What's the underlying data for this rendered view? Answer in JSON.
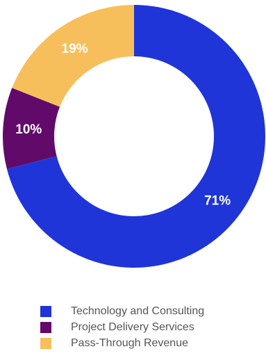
{
  "chart_data": {
    "type": "pie",
    "style": "donut",
    "slices": [
      {
        "name": "Technology and Consulting",
        "value": 71,
        "label": "71%",
        "color": "#1f35d8"
      },
      {
        "name": "Project Delivery Services",
        "value": 10,
        "label": "10%",
        "color": "#620a6a"
      },
      {
        "name": "Pass-Through Revenue",
        "value": 19,
        "label": "19%",
        "color": "#f7bf5b"
      }
    ],
    "legend_position": "bottom",
    "start": "top",
    "direction": "clockwise"
  }
}
